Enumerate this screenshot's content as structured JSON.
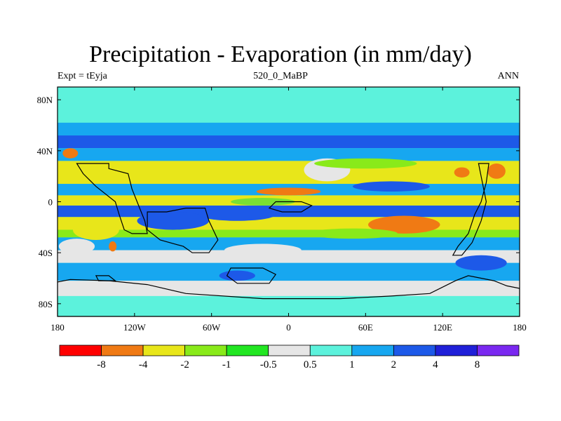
{
  "title": "Precipitation - Evaporation (in mm/day)",
  "subtitle_left": "Expt = tEyja",
  "subtitle_center": "520_0_MaBP",
  "subtitle_right": "ANN",
  "map": {
    "lon_range": [
      -180,
      180
    ],
    "lat_range": [
      -90,
      90
    ],
    "x_ticks": [
      {
        "value": -180,
        "label": "180"
      },
      {
        "value": -120,
        "label": "120W"
      },
      {
        "value": -60,
        "label": "60W"
      },
      {
        "value": 0,
        "label": "0"
      },
      {
        "value": 60,
        "label": "60E"
      },
      {
        "value": 120,
        "label": "120E"
      },
      {
        "value": 180,
        "label": "180"
      }
    ],
    "y_ticks": [
      {
        "value": 80,
        "label": "80N"
      },
      {
        "value": 40,
        "label": "40N"
      },
      {
        "value": 0,
        "label": "0"
      },
      {
        "value": -40,
        "label": "40S"
      },
      {
        "value": -80,
        "label": "80S"
      }
    ],
    "background_color": "#5cf2dc",
    "bands": [
      {
        "lat_from": 90,
        "lat_to": 62,
        "color": "#5cf2dc"
      },
      {
        "lat_from": 62,
        "lat_to": 52,
        "color": "#17a7f0"
      },
      {
        "lat_from": 52,
        "lat_to": 42,
        "color": "#1d59e8"
      },
      {
        "lat_from": 42,
        "lat_to": 32,
        "color": "#17a7f0"
      },
      {
        "lat_from": 32,
        "lat_to": 14,
        "color": "#e8e61a"
      },
      {
        "lat_from": 14,
        "lat_to": 5,
        "color": "#17a7f0"
      },
      {
        "lat_from": 5,
        "lat_to": -3,
        "color": "#e8e61a"
      },
      {
        "lat_from": -3,
        "lat_to": -12,
        "color": "#1d59e8"
      },
      {
        "lat_from": -12,
        "lat_to": -22,
        "color": "#e8e61a"
      },
      {
        "lat_from": -22,
        "lat_to": -28,
        "color": "#89ea1a"
      },
      {
        "lat_from": -28,
        "lat_to": -38,
        "color": "#17a7f0"
      },
      {
        "lat_from": -38,
        "lat_to": -48,
        "color": "#e6e6e6"
      },
      {
        "lat_from": -48,
        "lat_to": -62,
        "color": "#17a7f0"
      },
      {
        "lat_from": -62,
        "lat_to": -74,
        "color": "#e6e6e6"
      },
      {
        "lat_from": -74,
        "lat_to": -90,
        "color": "#5cf2dc"
      }
    ],
    "patches": [
      {
        "lon": 0,
        "lat": 8,
        "rx": 25,
        "ry": 3,
        "color": "#f07a14"
      },
      {
        "lon": 90,
        "lat": -18,
        "rx": 28,
        "ry": 7,
        "color": "#f07a14"
      },
      {
        "lon": 135,
        "lat": 23,
        "rx": 6,
        "ry": 4,
        "color": "#f07a14"
      },
      {
        "lon": 162,
        "lat": 24,
        "rx": 7,
        "ry": 6,
        "color": "#f07a14"
      },
      {
        "lon": -170,
        "lat": 38,
        "rx": 6,
        "ry": 4,
        "color": "#f07a14"
      },
      {
        "lon": -137,
        "lat": -35,
        "rx": 3,
        "ry": 4,
        "color": "#f07a14"
      },
      {
        "lon": 30,
        "lat": 25,
        "rx": 18,
        "ry": 9,
        "color": "#e6e6e6"
      },
      {
        "lon": -20,
        "lat": -38,
        "rx": 30,
        "ry": 5,
        "color": "#e6e6e6"
      },
      {
        "lon": -165,
        "lat": -35,
        "rx": 14,
        "ry": 6,
        "color": "#e6e6e6"
      },
      {
        "lon": -90,
        "lat": -15,
        "rx": 28,
        "ry": 7,
        "color": "#1d59e8"
      },
      {
        "lon": -40,
        "lat": -10,
        "rx": 30,
        "ry": 5,
        "color": "#1d59e8"
      },
      {
        "lon": 80,
        "lat": 12,
        "rx": 30,
        "ry": 4,
        "color": "#1d59e8"
      },
      {
        "lon": 150,
        "lat": -48,
        "rx": 20,
        "ry": 6,
        "color": "#1d59e8"
      },
      {
        "lon": -40,
        "lat": -58,
        "rx": 14,
        "ry": 4,
        "color": "#1d59e8"
      },
      {
        "lon": -20,
        "lat": 0,
        "rx": 25,
        "ry": 3,
        "color": "#7ae034"
      },
      {
        "lon": 50,
        "lat": -25,
        "rx": 35,
        "ry": 4,
        "color": "#89ea1a"
      },
      {
        "lon": -150,
        "lat": -22,
        "rx": 18,
        "ry": 8,
        "color": "#e8e61a"
      },
      {
        "lon": 60,
        "lat": 30,
        "rx": 40,
        "ry": 4,
        "color": "#89ea1a"
      }
    ],
    "continents": [
      {
        "points": [
          [
            -165,
            30
          ],
          [
            -140,
            30
          ],
          [
            -140,
            26
          ],
          [
            -125,
            22
          ],
          [
            -122,
            10
          ],
          [
            -118,
            0
          ],
          [
            -112,
            -15
          ],
          [
            -110,
            -25
          ],
          [
            -122,
            -25
          ],
          [
            -128,
            -22
          ],
          [
            -132,
            -10
          ],
          [
            -135,
            0
          ],
          [
            -150,
            12
          ],
          [
            -160,
            22
          ]
        ]
      },
      {
        "points": [
          [
            -110,
            -8
          ],
          [
            -95,
            -8
          ],
          [
            -80,
            -5
          ],
          [
            -65,
            -5
          ],
          [
            -62,
            -15
          ],
          [
            -55,
            -30
          ],
          [
            -62,
            -40
          ],
          [
            -75,
            -40
          ],
          [
            -82,
            -35
          ],
          [
            -100,
            -30
          ],
          [
            -110,
            -22
          ]
        ]
      },
      {
        "points": [
          [
            -10,
            0
          ],
          [
            10,
            0
          ],
          [
            18,
            -3
          ],
          [
            10,
            -8
          ],
          [
            -5,
            -8
          ],
          [
            -15,
            -5
          ]
        ]
      },
      {
        "points": [
          [
            -45,
            -52
          ],
          [
            -20,
            -52
          ],
          [
            -10,
            -57
          ],
          [
            -15,
            -64
          ],
          [
            -40,
            -64
          ],
          [
            -48,
            -58
          ]
        ]
      },
      {
        "points": [
          [
            148,
            30
          ],
          [
            156,
            30
          ],
          [
            154,
            15
          ],
          [
            150,
            0
          ],
          [
            145,
            -10
          ],
          [
            140,
            -25
          ],
          [
            132,
            -35
          ],
          [
            128,
            -42
          ],
          [
            135,
            -42
          ],
          [
            143,
            -32
          ],
          [
            150,
            -15
          ],
          [
            154,
            0
          ]
        ]
      },
      {
        "points": [
          [
            -180,
            -63
          ],
          [
            -170,
            -61
          ],
          [
            -140,
            -62
          ],
          [
            -110,
            -65
          ],
          [
            -80,
            -72
          ],
          [
            -20,
            -76
          ],
          [
            40,
            -76
          ],
          [
            80,
            -74
          ],
          [
            110,
            -72
          ],
          [
            120,
            -67
          ],
          [
            130,
            -62
          ],
          [
            140,
            -58
          ],
          [
            160,
            -62
          ],
          [
            170,
            -66
          ],
          [
            180,
            -68
          ],
          [
            180,
            -90
          ],
          [
            -180,
            -90
          ]
        ]
      },
      {
        "points": [
          [
            -150,
            -58
          ],
          [
            -140,
            -58
          ],
          [
            -135,
            -62
          ],
          [
            -148,
            -62
          ]
        ]
      }
    ]
  },
  "colorbar": {
    "colors": [
      "#ff0000",
      "#f07a14",
      "#e8e61a",
      "#89ea1a",
      "#22e622",
      "#e6e6e6",
      "#5cf2dc",
      "#17a7f0",
      "#1d59e8",
      "#2020d8",
      "#7a28f0"
    ],
    "labels": [
      "-8",
      "-4",
      "-2",
      "-1",
      "-0.5",
      "0.5",
      "1",
      "2",
      "4",
      "8"
    ]
  }
}
